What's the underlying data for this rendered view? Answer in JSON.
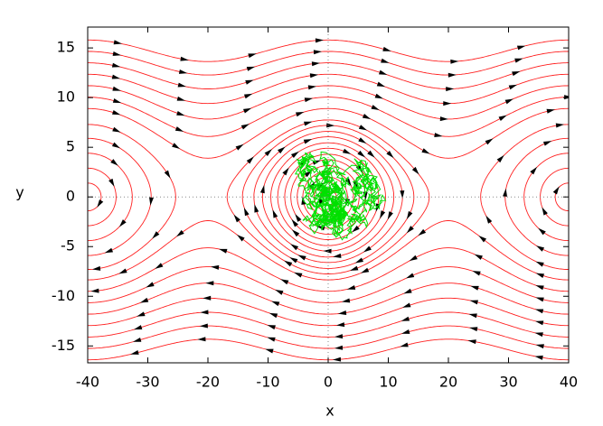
{
  "chart_data": {
    "type": "streamline",
    "xlabel": "x",
    "ylabel": "y",
    "xlim": [
      -40,
      40
    ],
    "ylim": [
      -16.7,
      17.1
    ],
    "xticks": [
      -40,
      -30,
      -20,
      -10,
      0,
      10,
      20,
      30,
      40
    ],
    "yticks": [
      -15,
      -10,
      -5,
      0,
      5,
      10,
      15
    ],
    "zeroaxis": true,
    "line_color": "#ff2020",
    "arrow_color": "#000000",
    "trajectory_color": "#00e000"
  }
}
